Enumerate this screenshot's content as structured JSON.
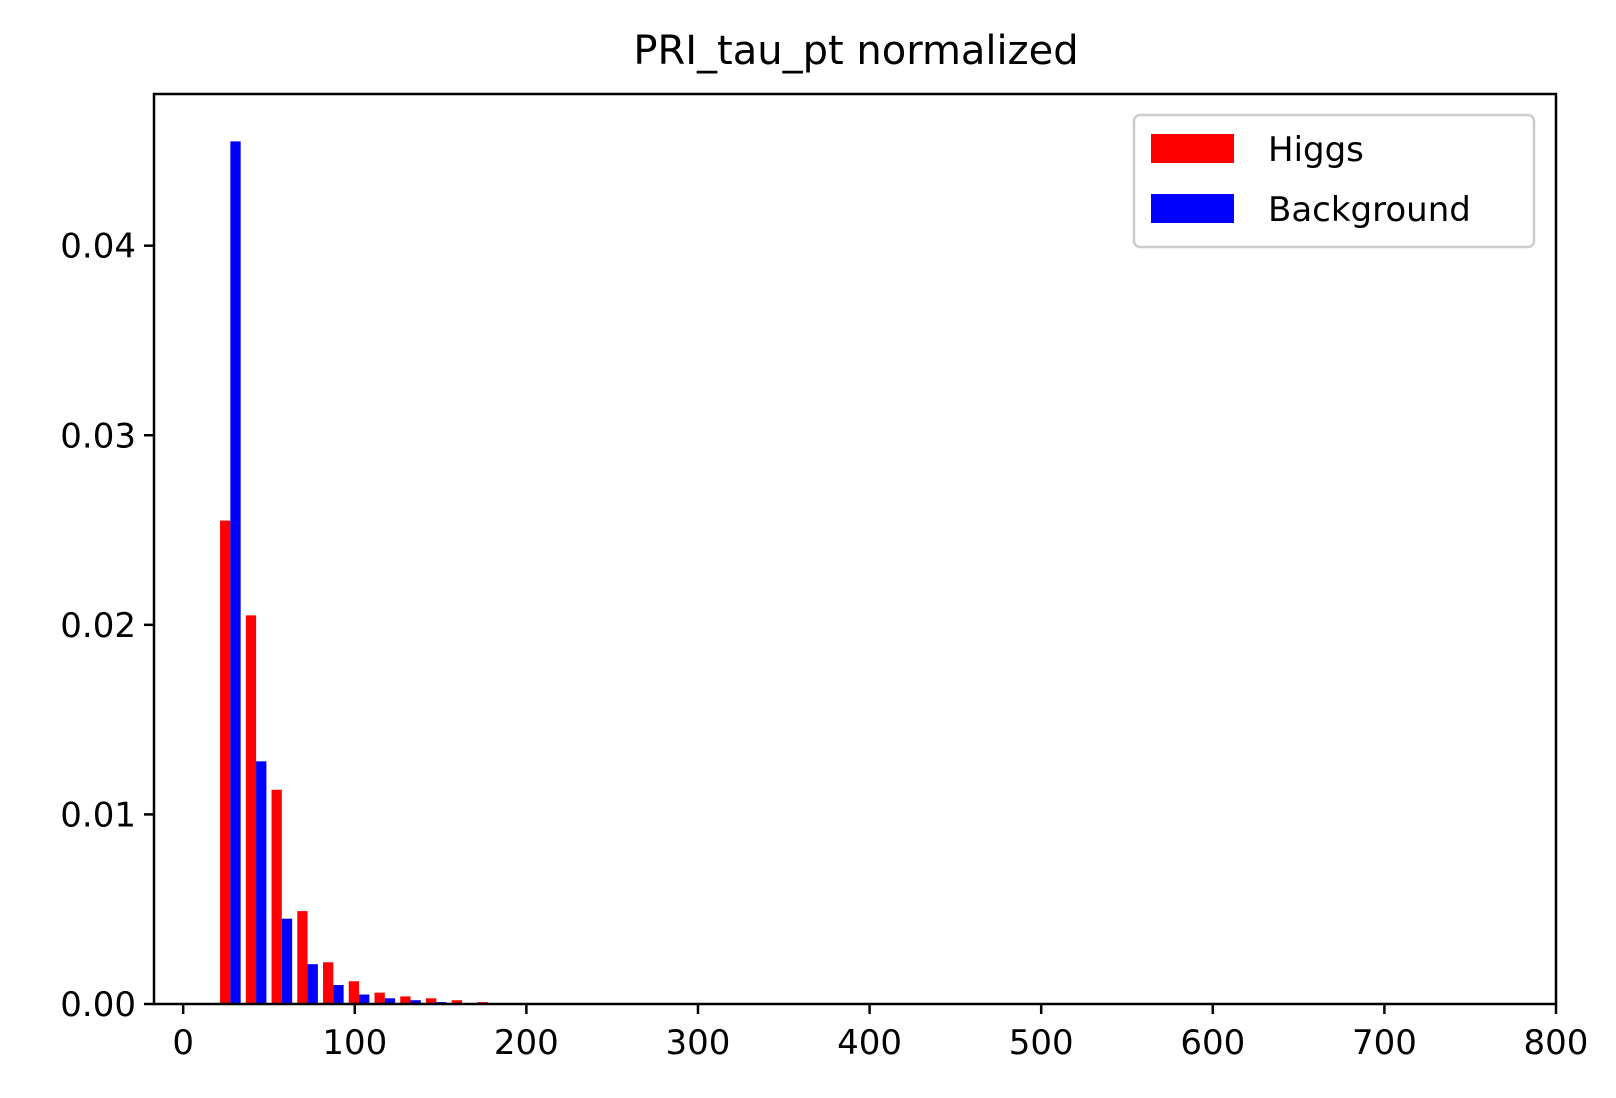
{
  "chart_data": {
    "type": "bar",
    "title": "PRI_tau_pt normalized",
    "xlabel": "",
    "ylabel": "",
    "xlim": [
      -17,
      800
    ],
    "ylim": [
      0,
      0.048
    ],
    "xticks": [
      0,
      100,
      200,
      300,
      400,
      500,
      600,
      700,
      800
    ],
    "yticks": [
      0.0,
      0.01,
      0.02,
      0.03,
      0.04
    ],
    "xtick_labels": [
      "0",
      "100",
      "200",
      "300",
      "400",
      "500",
      "600",
      "700",
      "800"
    ],
    "ytick_labels": [
      "0.00",
      "0.01",
      "0.02",
      "0.03",
      "0.04"
    ],
    "bins": [
      [
        20,
        35
      ],
      [
        35,
        50
      ],
      [
        50,
        65
      ],
      [
        65,
        80
      ],
      [
        80,
        95
      ],
      [
        95,
        110
      ],
      [
        110,
        125
      ],
      [
        125,
        140
      ],
      [
        140,
        155
      ],
      [
        155,
        170
      ],
      [
        170,
        185
      ],
      [
        185,
        200
      ]
    ],
    "series": [
      {
        "name": "Higgs",
        "color": "#ff0000",
        "values": [
          0.0255,
          0.0205,
          0.0113,
          0.0049,
          0.0022,
          0.0012,
          0.0006,
          0.0004,
          0.0003,
          0.0002,
          0.0001,
          5e-05
        ]
      },
      {
        "name": "Background",
        "color": "#0000ff",
        "values": [
          0.0455,
          0.0128,
          0.0045,
          0.0021,
          0.001,
          0.0005,
          0.0003,
          0.0002,
          0.0001,
          5e-05,
          3e-05,
          1e-05
        ]
      }
    ],
    "legend_position": "top-right",
    "grid": false
  }
}
